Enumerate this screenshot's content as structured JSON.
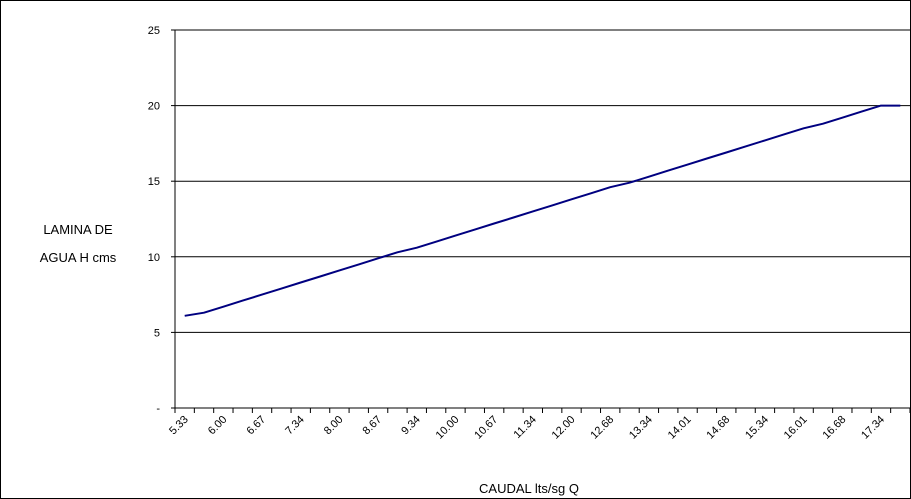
{
  "chart_data": {
    "type": "line",
    "title": "",
    "xlabel": "CAUDAL lts/sg Q",
    "ylabel": [
      "LAMINA DE",
      "AGUA H cms"
    ],
    "ylim": [
      0,
      25
    ],
    "y_ticks": [
      "-",
      "5",
      "10",
      "15",
      "20",
      "25"
    ],
    "y_tick_values": [
      0,
      5,
      10,
      15,
      20,
      25
    ],
    "grid": true,
    "legend": "none",
    "x_tick_labels": [
      "5.33",
      "6.00",
      "6.67",
      "7.34",
      "8.00",
      "8.67",
      "9.34",
      "10.00",
      "10.67",
      "11.34",
      "12.00",
      "12.68",
      "13.34",
      "14.01",
      "14.68",
      "15.34",
      "16.01",
      "16.68",
      "17.34"
    ],
    "x": [
      5.33,
      5.67,
      6.0,
      6.33,
      6.67,
      7.0,
      7.34,
      7.67,
      8.0,
      8.34,
      8.67,
      9.0,
      9.34,
      9.67,
      10.0,
      10.34,
      10.67,
      11.0,
      11.34,
      11.67,
      12.0,
      12.34,
      12.68,
      13.01,
      13.34,
      13.67,
      14.01,
      14.34,
      14.68,
      15.01,
      15.34,
      15.67,
      16.01,
      16.34,
      16.68,
      17.01,
      17.34,
      17.67
    ],
    "series": [
      {
        "color": "#000080",
        "values": [
          6.1,
          6.3,
          6.7,
          7.1,
          7.5,
          7.9,
          8.3,
          8.7,
          9.1,
          9.5,
          9.9,
          10.3,
          10.6,
          11.0,
          11.4,
          11.8,
          12.2,
          12.6,
          13.0,
          13.4,
          13.8,
          14.2,
          14.6,
          14.9,
          15.3,
          15.7,
          16.1,
          16.5,
          16.9,
          17.3,
          17.7,
          18.1,
          18.5,
          18.8,
          19.2,
          19.6,
          20.0,
          20.0
        ]
      }
    ],
    "colors": {
      "line": "#000080",
      "grid": "#000000",
      "frame": "#000000"
    }
  }
}
